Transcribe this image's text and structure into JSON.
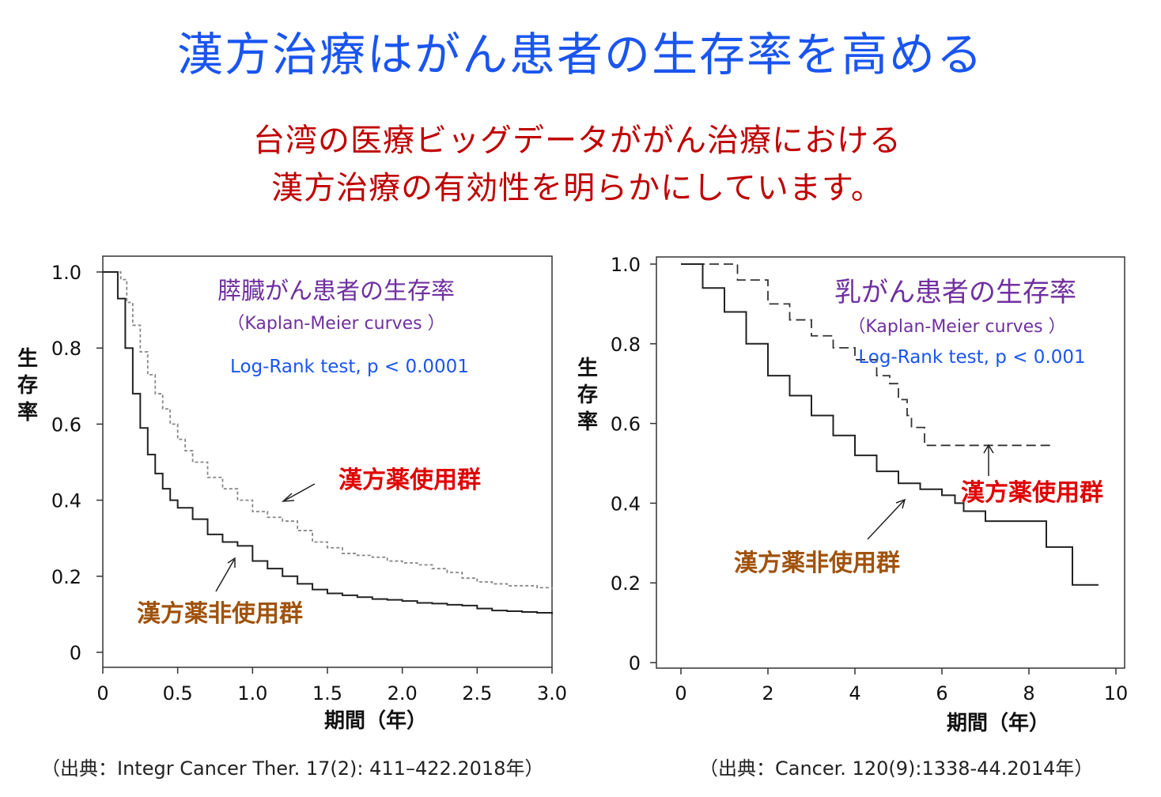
{
  "title": "漢方治療はがん患者の生存率を高める",
  "subtitle": [
    "台湾の医療ビッグデータががん治療における",
    "漢方治療の有効性を明らかにしています。"
  ],
  "colors": {
    "title": "#1a55f0",
    "subtitle": "#c00000",
    "chart_title": "#7030a0",
    "stat_text": "#1a55f0",
    "kampo_label": "#e00000",
    "non_kampo_label": "#a0520c",
    "kampo_curve_left": "#888888",
    "curve": "#222222"
  },
  "sources": [
    "（出典：Integr Cancer Ther. 17(2): 411–422.2018年）",
    "（出典：Cancer. 120(9):1338-44.2014年）"
  ],
  "chart_data": [
    {
      "type": "line",
      "title": "膵臓がん患者の生存率",
      "subtitle": "（Kaplan-Meier curves ）",
      "stat": "Log-Rank test,  p < 0.0001",
      "xlabel": "期間（年）",
      "ylabel": "生存率",
      "xlim": [
        0,
        3.0
      ],
      "ylim": [
        0,
        1.0
      ],
      "xticks": [
        "0",
        "0.5",
        "1.0",
        "1.5",
        "2.0",
        "2.5",
        "3.0"
      ],
      "yticks": [
        "0",
        "0.2",
        "0.4",
        "0.6",
        "0.8",
        "1.0"
      ],
      "series": [
        {
          "name": "漢方薬使用群",
          "style": "dotted",
          "x": [
            0,
            0.08,
            0.12,
            0.16,
            0.2,
            0.25,
            0.3,
            0.35,
            0.4,
            0.45,
            0.5,
            0.55,
            0.6,
            0.7,
            0.8,
            0.9,
            1.0,
            1.1,
            1.2,
            1.3,
            1.4,
            1.5,
            1.6,
            1.7,
            1.8,
            1.9,
            2.0,
            2.1,
            2.2,
            2.3,
            2.4,
            2.5,
            2.6,
            2.7,
            2.8,
            2.9,
            3.0
          ],
          "y": [
            1.0,
            1.0,
            0.98,
            0.92,
            0.86,
            0.79,
            0.73,
            0.68,
            0.64,
            0.6,
            0.56,
            0.53,
            0.5,
            0.46,
            0.43,
            0.4,
            0.37,
            0.355,
            0.345,
            0.32,
            0.29,
            0.275,
            0.26,
            0.255,
            0.25,
            0.24,
            0.235,
            0.23,
            0.22,
            0.21,
            0.195,
            0.185,
            0.18,
            0.175,
            0.175,
            0.17,
            0.165
          ]
        },
        {
          "name": "漢方薬非使用群",
          "style": "solid",
          "x": [
            0,
            0.08,
            0.1,
            0.15,
            0.2,
            0.25,
            0.3,
            0.35,
            0.4,
            0.45,
            0.5,
            0.6,
            0.7,
            0.8,
            0.9,
            1.0,
            1.1,
            1.2,
            1.3,
            1.4,
            1.5,
            1.6,
            1.7,
            1.8,
            1.9,
            2.0,
            2.1,
            2.2,
            2.3,
            2.4,
            2.5,
            2.6,
            2.7,
            2.8,
            2.9,
            3.0
          ],
          "y": [
            1.0,
            1.0,
            0.93,
            0.8,
            0.68,
            0.59,
            0.52,
            0.47,
            0.43,
            0.4,
            0.38,
            0.35,
            0.31,
            0.29,
            0.28,
            0.24,
            0.22,
            0.2,
            0.18,
            0.165,
            0.155,
            0.15,
            0.145,
            0.14,
            0.138,
            0.135,
            0.13,
            0.128,
            0.125,
            0.123,
            0.115,
            0.11,
            0.108,
            0.106,
            0.104,
            0.1
          ]
        }
      ]
    },
    {
      "type": "line",
      "title": "乳がん患者の生存率",
      "subtitle": "（Kaplan-Meier curves ）",
      "stat": "Log-Rank test,  p < 0.001",
      "xlabel": "期間（年）",
      "ylabel": "生存率",
      "xlim": [
        0,
        10
      ],
      "ylim": [
        0,
        1.0
      ],
      "xticks": [
        "0",
        "2",
        "4",
        "6",
        "8",
        "10"
      ],
      "yticks": [
        "0",
        "0.2",
        "0.4",
        "0.6",
        "0.8",
        "1.0"
      ],
      "series": [
        {
          "name": "漢方薬使用群",
          "style": "dashed",
          "x": [
            0,
            1.0,
            1.3,
            2.0,
            2.5,
            3.0,
            3.5,
            4.0,
            4.5,
            4.8,
            5.0,
            5.2,
            5.3,
            5.6,
            8.5
          ],
          "y": [
            1.0,
            1.0,
            0.96,
            0.9,
            0.86,
            0.82,
            0.79,
            0.76,
            0.72,
            0.7,
            0.66,
            0.62,
            0.59,
            0.545,
            0.545
          ]
        },
        {
          "name": "漢方薬非使用群",
          "style": "solid",
          "x": [
            0,
            0.5,
            1.0,
            1.5,
            2.0,
            2.5,
            3.0,
            3.5,
            4.0,
            4.5,
            5.0,
            5.5,
            6.0,
            6.3,
            6.5,
            7.0,
            8.3,
            8.4,
            9.0,
            9.6
          ],
          "y": [
            1.0,
            0.94,
            0.88,
            0.8,
            0.72,
            0.67,
            0.62,
            0.57,
            0.52,
            0.48,
            0.45,
            0.435,
            0.42,
            0.4,
            0.38,
            0.355,
            0.355,
            0.29,
            0.195,
            0.195
          ]
        }
      ]
    }
  ]
}
